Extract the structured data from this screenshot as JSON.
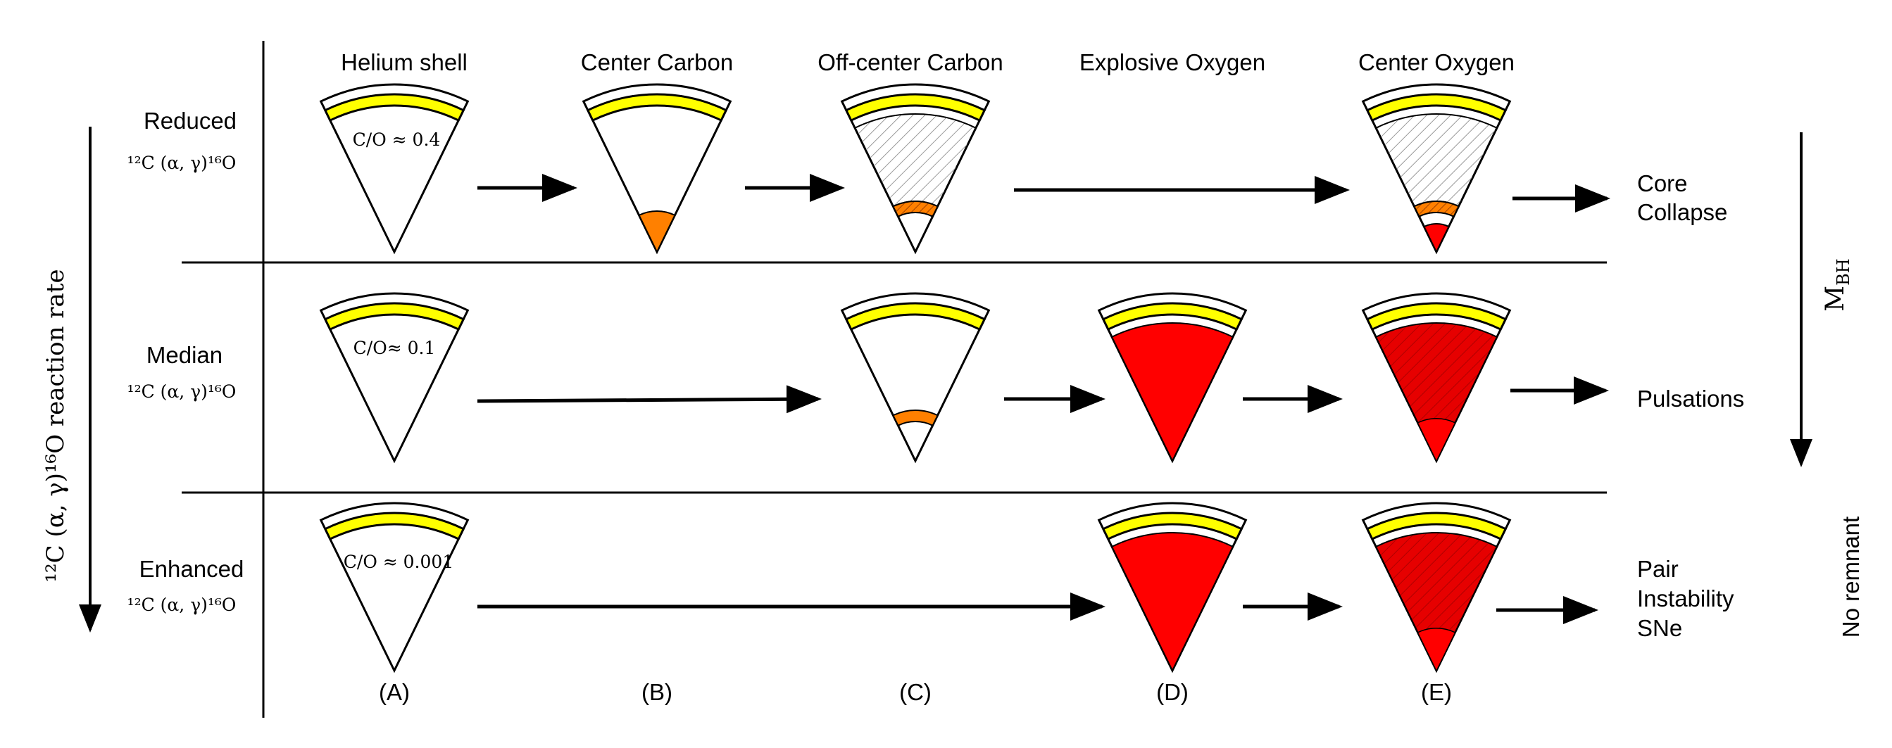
{
  "columns": [
    "Helium shell",
    "Center Carbon",
    "Off-center Carbon",
    "Explosive Oxygen",
    "Center Oxygen"
  ],
  "column_letters": [
    "(A)",
    "(B)",
    "(C)",
    "(D)",
    "(E)"
  ],
  "rows": [
    {
      "name": "Reduced",
      "reaction": "¹²C (α, γ)¹⁶O",
      "ratio": "C/O ≈ 0.4",
      "outcome": [
        "Core",
        "Collapse"
      ]
    },
    {
      "name": "Median",
      "reaction": "¹²C (α, γ)¹⁶O",
      "ratio": "C/O≈ 0.1",
      "outcome": [
        "Pulsations"
      ]
    },
    {
      "name": "Enhanced",
      "reaction": "¹²C (α, γ)¹⁶O",
      "ratio": "C/O ≈ 0.001",
      "outcome": [
        "Pair",
        "Instability",
        "SNe"
      ]
    }
  ],
  "left_axis_label": "¹²C (α, γ)¹⁶O reaction rate",
  "right_axis_label_top": "M",
  "right_axis_label_top_sub": "BH",
  "right_axis_label_bottom": "No remnant",
  "colors": {
    "helium_shell": "#ffff00",
    "carbon": "#ff8000",
    "oxygen": "#ff0000",
    "hatch": "#999999",
    "line": "#000000"
  }
}
